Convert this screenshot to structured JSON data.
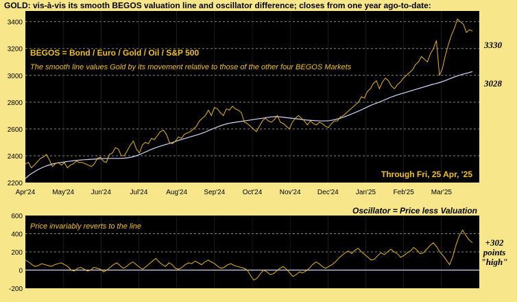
{
  "title": "GOLD:  vis-à-vis its smooth BEGOS valuation line and oscillator difference; closes from one year ago-to-date:",
  "colors": {
    "background": "#f7e68a",
    "plot": "#000000",
    "gold": "#e8b820",
    "valuation": "#d8d8ff",
    "text_gold": "#f2c21f"
  },
  "chart_data": [
    {
      "type": "line",
      "legend_title": "BEGOS = Bond / Euro / Gold / Oil / S&P 500",
      "subtitle": "The smooth line values Gold by its movement relative to those of the other four BEGOS Markets",
      "annotation": "Through Fri, 25 Apr, '25",
      "x_ticks": [
        "Apr'24",
        "May'24",
        "Jun'24",
        "Jul'24",
        "Aug'24",
        "Sep'24",
        "Oct'24",
        "Nov'24",
        "Dec'24",
        "Jan'25",
        "Feb'25",
        "Mar'25"
      ],
      "y_ticks": [
        2200,
        2400,
        2600,
        2800,
        3000,
        3200,
        3400
      ],
      "ylim": [
        2200,
        3480
      ],
      "last_price_label": "3330",
      "last_valuation_label": "3028",
      "series": [
        {
          "role": "price",
          "values": [
            2340,
            2350,
            2310,
            2330,
            2355,
            2380,
            2390,
            2410,
            2370,
            2320,
            2340,
            2350,
            2330,
            2350,
            2310,
            2330,
            2340,
            2360,
            2350,
            2350,
            2340,
            2330,
            2320,
            2340,
            2380,
            2390,
            2360,
            2350,
            2410,
            2420,
            2460,
            2450,
            2400,
            2400,
            2440,
            2480,
            2510,
            2450,
            2420,
            2480,
            2500,
            2490,
            2530,
            2520,
            2550,
            2580,
            2590,
            2560,
            2500,
            2490,
            2510,
            2540,
            2530,
            2560,
            2570,
            2580,
            2600,
            2620,
            2660,
            2680,
            2700,
            2740,
            2700,
            2760,
            2750,
            2720,
            2700,
            2750,
            2740,
            2770,
            2750,
            2740,
            2720,
            2650,
            2640,
            2620,
            2600,
            2580,
            2620,
            2660,
            2680,
            2660,
            2650,
            2670,
            2700,
            2650,
            2640,
            2620,
            2600,
            2650,
            2680,
            2700,
            2680,
            2660,
            2630,
            2660,
            2640,
            2630,
            2650,
            2640,
            2620,
            2610,
            2640,
            2660,
            2660,
            2690,
            2700,
            2720,
            2740,
            2760,
            2780,
            2800,
            2840,
            2830,
            2880,
            2900,
            2940,
            2960,
            2900,
            2950,
            2980,
            2960,
            2920,
            2900,
            2930,
            2950,
            2980,
            3000,
            3020,
            3040,
            3080,
            3100,
            3140,
            3120,
            3100,
            3160,
            3200,
            3260,
            3000,
            3050,
            3150,
            3230,
            3300,
            3350,
            3420,
            3400,
            3380,
            3320,
            3340,
            3330
          ]
        },
        {
          "role": "valuation",
          "values": [
            2230,
            2260,
            2280,
            2300,
            2315,
            2328,
            2338,
            2345,
            2350,
            2355,
            2360,
            2364,
            2367,
            2370,
            2372,
            2374,
            2376,
            2378,
            2380,
            2380,
            2380,
            2380,
            2382,
            2385,
            2392,
            2402,
            2415,
            2430,
            2445,
            2458,
            2470,
            2480,
            2490,
            2500,
            2512,
            2522,
            2532,
            2542,
            2552,
            2562,
            2574,
            2588,
            2602,
            2616,
            2628,
            2638,
            2645,
            2650,
            2655,
            2660,
            2665,
            2670,
            2675,
            2680,
            2685,
            2690,
            2692,
            2690,
            2686,
            2682,
            2678,
            2674,
            2670,
            2666,
            2664,
            2662,
            2660,
            2660,
            2662,
            2668,
            2676,
            2686,
            2698,
            2712,
            2726,
            2740,
            2756,
            2772,
            2786,
            2798,
            2812,
            2826,
            2840,
            2852,
            2862,
            2872,
            2882,
            2892,
            2902,
            2912,
            2922,
            2932,
            2940,
            2950,
            2962,
            2975,
            2988,
            3000,
            3010,
            3018,
            3028
          ]
        }
      ]
    },
    {
      "type": "line",
      "title": "Oscillator = Price less Valuation",
      "subtitle": "Price invariably reverts to the line",
      "y_ticks": [
        -200,
        0,
        200,
        400,
        600
      ],
      "ylim": [
        -200,
        600
      ],
      "note_lines": [
        "+302",
        "points",
        "\"high\""
      ],
      "series": [
        {
          "role": "oscillator",
          "values": [
            110,
            90,
            60,
            40,
            50,
            70,
            60,
            50,
            40,
            60,
            70,
            80,
            60,
            40,
            0,
            -10,
            20,
            30,
            10,
            -10,
            0,
            30,
            20,
            10,
            -20,
            0,
            30,
            60,
            80,
            50,
            20,
            40,
            70,
            90,
            60,
            30,
            10,
            40,
            70,
            100,
            130,
            90,
            60,
            40,
            80,
            60,
            20,
            10,
            30,
            60,
            80,
            70,
            100,
            80,
            60,
            90,
            110,
            90,
            70,
            40,
            20,
            30,
            60,
            70,
            50,
            40,
            30,
            20,
            0,
            -60,
            -110,
            -90,
            -40,
            0,
            -20,
            -50,
            -40,
            -10,
            20,
            40,
            10,
            -30,
            -70,
            -50,
            -20,
            -30,
            -10,
            20,
            60,
            90,
            70,
            40,
            20,
            40,
            60,
            90,
            130,
            160,
            190,
            210,
            180,
            220,
            240,
            200,
            170,
            140,
            110,
            120,
            160,
            190,
            170,
            200,
            230,
            200,
            180,
            140,
            160,
            190,
            210,
            250,
            220,
            180,
            190,
            230,
            270,
            300,
            260,
            200,
            160,
            110,
            60,
            150,
            280,
            380,
            440,
            380,
            330,
            302
          ]
        }
      ]
    }
  ]
}
